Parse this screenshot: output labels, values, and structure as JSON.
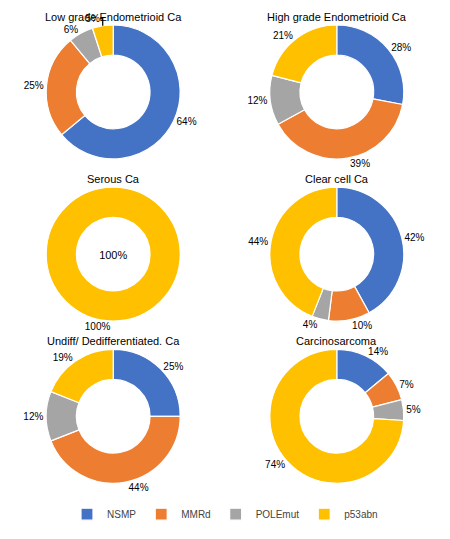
{
  "chart_data": [
    {
      "type": "pie",
      "title": "Low grade Endometrioid Ca",
      "categories": [
        "NSMP",
        "MMRd",
        "POLEmut",
        "p53abn"
      ],
      "values": [
        64,
        25,
        6,
        5
      ],
      "value_labels": [
        "64%",
        "25%",
        "6%",
        "5%"
      ],
      "colors": [
        "#4472c4",
        "#ed7d31",
        "#a5a5a5",
        "#ffc000"
      ],
      "data_labels": true,
      "legend": "bottom"
    },
    {
      "type": "pie",
      "title": "High grade Endometrioid Ca",
      "categories": [
        "NSMP",
        "MMRd",
        "POLEmut",
        "p53abn"
      ],
      "values": [
        28,
        39,
        12,
        21
      ],
      "value_labels": [
        "28%",
        "39%",
        "12%",
        "21%"
      ],
      "colors": [
        "#4472c4",
        "#ed7d31",
        "#a5a5a5",
        "#ffc000"
      ],
      "data_labels": true,
      "legend": "bottom"
    },
    {
      "type": "pie",
      "title": "Serous Ca",
      "categories": [
        "NSMP",
        "MMRd",
        "POLEmut",
        "p53abn"
      ],
      "values": [
        0,
        0,
        0,
        100
      ],
      "value_labels": [
        null,
        null,
        null,
        "100%"
      ],
      "annotation": "100%",
      "colors": [
        "#4472c4",
        "#ed7d31",
        "#a5a5a5",
        "#ffc000"
      ],
      "data_labels": true,
      "legend": "bottom"
    },
    {
      "type": "pie",
      "title": "Clear cell Ca",
      "categories": [
        "NSMP",
        "MMRd",
        "POLEmut",
        "p53abn"
      ],
      "values": [
        42,
        10,
        4,
        44
      ],
      "value_labels": [
        "42%",
        "10%",
        "4%",
        "44%"
      ],
      "colors": [
        "#4472c4",
        "#ed7d31",
        "#a5a5a5",
        "#ffc000"
      ],
      "data_labels": true,
      "legend": "bottom"
    },
    {
      "type": "pie",
      "title": "Undiff/ Dedifferentiated. Ca",
      "categories": [
        "NSMP",
        "MMRd",
        "POLEmut",
        "p53abn"
      ],
      "values": [
        25,
        44,
        12,
        19
      ],
      "value_labels": [
        "25%",
        "44%",
        "12%",
        "19%"
      ],
      "colors": [
        "#4472c4",
        "#ed7d31",
        "#a5a5a5",
        "#ffc000"
      ],
      "data_labels": true,
      "legend": "bottom"
    },
    {
      "type": "pie",
      "title": "Carcinosarcoma",
      "categories": [
        "NSMP",
        "MMRd",
        "POLEmut",
        "p53abn"
      ],
      "values": [
        14,
        7,
        5,
        74
      ],
      "value_labels": [
        "14%",
        "7%",
        "5%",
        "74%"
      ],
      "colors": [
        "#4472c4",
        "#ed7d31",
        "#a5a5a5",
        "#ffc000"
      ],
      "data_labels": true,
      "legend": "bottom"
    }
  ]
}
